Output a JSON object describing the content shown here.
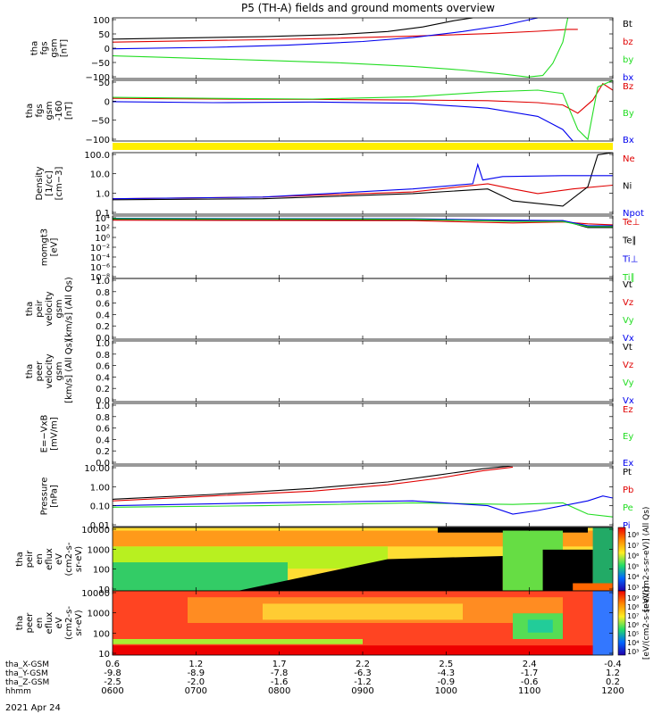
{
  "title": "P5 (TH-A) fields and ground moments overview",
  "date": "2021 Apr 24",
  "colors": {
    "black": "#000000",
    "red": "#e00000",
    "green": "#22dd22",
    "blue": "#0000ee",
    "yellow": "#ffee00"
  },
  "chart_data": [
    {
      "type": "line",
      "ylabel_lines": [
        "tha",
        "fgs",
        "gsm",
        "[nT]"
      ],
      "yticks": [
        "100",
        "50",
        "0",
        "−50",
        "−100"
      ],
      "ylim": [
        -100,
        100
      ],
      "series": [
        {
          "name": "Bt",
          "color": "black",
          "points": [
            [
              0,
              30
            ],
            [
              0.15,
              34
            ],
            [
              0.3,
              38
            ],
            [
              0.45,
              45
            ],
            [
              0.55,
              55
            ],
            [
              0.62,
              70
            ],
            [
              0.68,
              90
            ],
            [
              0.72,
              100
            ]
          ]
        },
        {
          "name": "bz",
          "color": "red",
          "points": [
            [
              0,
              20
            ],
            [
              0.15,
              24
            ],
            [
              0.3,
              28
            ],
            [
              0.45,
              33
            ],
            [
              0.6,
              40
            ],
            [
              0.75,
              48
            ],
            [
              0.85,
              56
            ],
            [
              0.91,
              62
            ],
            [
              0.93,
              62
            ]
          ]
        },
        {
          "name": "by",
          "color": "green",
          "points": [
            [
              0,
              -25
            ],
            [
              0.1,
              -30
            ],
            [
              0.2,
              -35
            ],
            [
              0.3,
              -40
            ],
            [
              0.45,
              -48
            ],
            [
              0.6,
              -60
            ],
            [
              0.7,
              -72
            ],
            [
              0.78,
              -85
            ],
            [
              0.83,
              -95
            ],
            [
              0.86,
              -90
            ],
            [
              0.88,
              -50
            ],
            [
              0.9,
              20
            ],
            [
              0.91,
              100
            ]
          ]
        },
        {
          "name": "bx",
          "color": "blue",
          "points": [
            [
              0,
              -2
            ],
            [
              0.2,
              3
            ],
            [
              0.35,
              10
            ],
            [
              0.5,
              22
            ],
            [
              0.6,
              35
            ],
            [
              0.7,
              55
            ],
            [
              0.78,
              75
            ],
            [
              0.85,
              100
            ]
          ]
        }
      ]
    },
    {
      "type": "line",
      "ylabel_lines": [
        "tha",
        "fgs",
        "gsm",
        "-160",
        "[nT]"
      ],
      "yticks": [
        "50",
        "0",
        "−50",
        "−100"
      ],
      "ylim": [
        -125,
        60
      ],
      "series": [
        {
          "name": "Bz",
          "color": "red",
          "points": [
            [
              0,
              5
            ],
            [
              0.2,
              3
            ],
            [
              0.4,
              2
            ],
            [
              0.6,
              0
            ],
            [
              0.75,
              -2
            ],
            [
              0.85,
              -8
            ],
            [
              0.9,
              -15
            ],
            [
              0.93,
              -40
            ],
            [
              0.96,
              0
            ],
            [
              0.98,
              50
            ],
            [
              1,
              30
            ]
          ]
        },
        {
          "name": "By",
          "color": "green",
          "points": [
            [
              0,
              8
            ],
            [
              0.2,
              5
            ],
            [
              0.4,
              3
            ],
            [
              0.6,
              10
            ],
            [
              0.75,
              25
            ],
            [
              0.85,
              30
            ],
            [
              0.9,
              20
            ],
            [
              0.93,
              -90
            ],
            [
              0.95,
              -120
            ],
            [
              0.97,
              40
            ],
            [
              1,
              60
            ]
          ]
        },
        {
          "name": "Bx",
          "color": "blue",
          "points": [
            [
              0,
              -5
            ],
            [
              0.2,
              -8
            ],
            [
              0.4,
              -6
            ],
            [
              0.6,
              -10
            ],
            [
              0.75,
              -25
            ],
            [
              0.85,
              -50
            ],
            [
              0.9,
              -90
            ],
            [
              0.92,
              -125
            ]
          ]
        }
      ]
    },
    {
      "type": "line",
      "ylabel_lines": [
        "Density",
        "[1/cc]",
        "[cm−3]"
      ],
      "yticks": [
        "100.0",
        "10.0",
        "1.0",
        "0.1"
      ],
      "ylim": [
        0.05,
        200
      ],
      "yscale": "log",
      "series": [
        {
          "name": "Ne",
          "color": "red",
          "points": [
            [
              0,
              0.4
            ],
            [
              0.3,
              0.5
            ],
            [
              0.6,
              1.0
            ],
            [
              0.75,
              3.0
            ],
            [
              0.8,
              1.5
            ],
            [
              0.85,
              0.8
            ],
            [
              0.92,
              1.5
            ],
            [
              1,
              2.5
            ]
          ]
        },
        {
          "name": "Ni",
          "color": "black",
          "points": [
            [
              0,
              0.35
            ],
            [
              0.3,
              0.4
            ],
            [
              0.6,
              0.8
            ],
            [
              0.75,
              1.5
            ],
            [
              0.8,
              0.3
            ],
            [
              0.9,
              0.15
            ],
            [
              0.95,
              2.0
            ],
            [
              0.97,
              150
            ],
            [
              1,
              200
            ]
          ]
        },
        {
          "name": "Npot",
          "color": "blue",
          "points": [
            [
              0,
              0.4
            ],
            [
              0.3,
              0.5
            ],
            [
              0.6,
              1.5
            ],
            [
              0.72,
              3.0
            ],
            [
              0.73,
              40
            ],
            [
              0.74,
              5.0
            ],
            [
              0.78,
              8.0
            ],
            [
              0.9,
              9.0
            ],
            [
              1,
              9.0
            ]
          ]
        }
      ]
    },
    {
      "type": "line",
      "ylabel_lines": [
        "momgt3",
        "[eV]"
      ],
      "yticks": [
        "10⁴",
        "10²",
        "10⁰",
        "10⁻²",
        "10⁻⁴",
        "10⁻⁶",
        "10⁻⁸"
      ],
      "ylim": [
        -9,
        4.5
      ],
      "yscale": "log10-exponent",
      "series": [
        {
          "name": "Te⊥",
          "color": "red",
          "points": [
            [
              0,
              3.6
            ],
            [
              0.6,
              3.5
            ],
            [
              0.8,
              3.0
            ],
            [
              0.9,
              3.2
            ],
            [
              0.95,
              2.8
            ],
            [
              1,
              2.6
            ]
          ]
        },
        {
          "name": "Te∥",
          "color": "black",
          "points": [
            [
              0,
              3.8
            ],
            [
              0.6,
              3.7
            ],
            [
              0.8,
              3.4
            ],
            [
              0.9,
              3.5
            ],
            [
              0.95,
              2.0
            ],
            [
              1,
              2.0
            ]
          ]
        },
        {
          "name": "Ti⊥",
          "color": "blue",
          "points": [
            [
              0,
              4.0
            ],
            [
              0.6,
              3.9
            ],
            [
              0.8,
              3.6
            ],
            [
              0.9,
              3.5
            ],
            [
              0.95,
              2.4
            ],
            [
              1,
              2.4
            ]
          ]
        },
        {
          "name": "Ti∥",
          "color": "green",
          "points": [
            [
              0,
              3.9
            ],
            [
              0.6,
              3.8
            ],
            [
              0.8,
              3.3
            ],
            [
              0.9,
              3.3
            ],
            [
              0.95,
              2.2
            ],
            [
              1,
              2.2
            ]
          ]
        }
      ]
    },
    {
      "type": "line",
      "ylabel_lines": [
        "tha",
        "peir",
        "velocity",
        "gsm",
        "[km/s] (All Qs)"
      ],
      "yticks": [
        "1.0",
        "0.8",
        "0.6",
        "0.4",
        "0.2",
        "0.0"
      ],
      "ylim": [
        0,
        1
      ],
      "series": [
        {
          "name": "Vt",
          "color": "black",
          "points": []
        },
        {
          "name": "Vz",
          "color": "red",
          "points": []
        },
        {
          "name": "Vy",
          "color": "green",
          "points": []
        },
        {
          "name": "Vx",
          "color": "blue",
          "points": []
        }
      ]
    },
    {
      "type": "line",
      "ylabel_lines": [
        "tha",
        "peer",
        "velocity",
        "gsm",
        "[km/s] (All Qs)"
      ],
      "yticks": [
        "1.0",
        "0.8",
        "0.6",
        "0.4",
        "0.2",
        "0.0"
      ],
      "ylim": [
        0,
        1
      ],
      "series": [
        {
          "name": "Vt",
          "color": "black",
          "points": []
        },
        {
          "name": "Vz",
          "color": "red",
          "points": []
        },
        {
          "name": "Vy",
          "color": "green",
          "points": []
        },
        {
          "name": "Vx",
          "color": "blue",
          "points": []
        }
      ]
    },
    {
      "type": "line",
      "ylabel_lines": [
        "E=−VxB",
        "[mV/m]"
      ],
      "yticks": [
        "1.0",
        "0.8",
        "0.6",
        "0.4",
        "0.2",
        "0.0"
      ],
      "ylim": [
        0,
        1
      ],
      "series": [
        {
          "name": "Ez",
          "color": "red",
          "points": []
        },
        {
          "name": "Ey",
          "color": "green",
          "points": []
        },
        {
          "name": "Ex",
          "color": "blue",
          "points": []
        }
      ]
    },
    {
      "type": "line",
      "ylabel_lines": [
        "Pressure",
        "[nPa]"
      ],
      "yticks": [
        "10.00",
        "1.00",
        "0.10",
        "0.01"
      ],
      "ylim": [
        0.005,
        30
      ],
      "yscale": "log",
      "series": [
        {
          "name": "Pt",
          "color": "black",
          "points": [
            [
              0,
              0.25
            ],
            [
              0.2,
              0.5
            ],
            [
              0.4,
              1.2
            ],
            [
              0.55,
              3.0
            ],
            [
              0.65,
              8.0
            ],
            [
              0.74,
              20
            ],
            [
              0.8,
              30
            ]
          ]
        },
        {
          "name": "Pb",
          "color": "red",
          "points": [
            [
              0,
              0.2
            ],
            [
              0.2,
              0.4
            ],
            [
              0.4,
              0.8
            ],
            [
              0.55,
              2.0
            ],
            [
              0.65,
              5.0
            ],
            [
              0.74,
              15
            ],
            [
              0.8,
              25
            ]
          ]
        },
        {
          "name": "Pe",
          "color": "green",
          "points": [
            [
              0,
              0.08
            ],
            [
              0.3,
              0.1
            ],
            [
              0.6,
              0.15
            ],
            [
              0.8,
              0.12
            ],
            [
              0.9,
              0.15
            ],
            [
              0.95,
              0.03
            ],
            [
              1,
              0.02
            ]
          ]
        },
        {
          "name": "Pi",
          "color": "blue",
          "points": [
            [
              0,
              0.1
            ],
            [
              0.3,
              0.15
            ],
            [
              0.6,
              0.2
            ],
            [
              0.75,
              0.1
            ],
            [
              0.8,
              0.03
            ],
            [
              0.85,
              0.05
            ],
            [
              0.9,
              0.1
            ],
            [
              0.95,
              0.2
            ],
            [
              0.98,
              0.4
            ],
            [
              1,
              0.3
            ]
          ]
        }
      ]
    },
    {
      "type": "heatmap",
      "ylabel_lines": [
        "tha",
        "peir",
        "en",
        "eflux",
        "eV",
        "(cm2-s-",
        "sr-eV)"
      ],
      "yticks": [
        "10000",
        "1000",
        "100",
        "10"
      ],
      "ylim": [
        5,
        30000
      ],
      "yscale": "log",
      "colorbar_label": "[eV/(cm2-s-sr-eV)] (All Qs)",
      "colorbar_ticks": [
        "10⁸",
        "10⁷",
        "10⁶",
        "10⁵",
        "10⁴",
        "10³"
      ]
    },
    {
      "type": "heatmap",
      "ylabel_lines": [
        "tha",
        "peer",
        "en",
        "eflux",
        "eV",
        "(cm2-s-",
        "sr-eV)"
      ],
      "yticks": [
        "10000",
        "1000",
        "100",
        "10"
      ],
      "ylim": [
        5,
        30000
      ],
      "yscale": "log",
      "colorbar_label": "[eV/(cm2-s-sr-eV)]",
      "colorbar_ticks": [
        "10⁹",
        "10⁸",
        "10⁷",
        "10⁶",
        "10⁵",
        "10⁴",
        "10³"
      ]
    }
  ],
  "x_axis": {
    "row_labels": [
      "tha_X-GSM",
      "tha_Y-GSM",
      "tha_Z-GSM",
      "hhmm"
    ],
    "columns": [
      [
        "0.6",
        "-9.8",
        "-2.5",
        "0600"
      ],
      [
        "1.2",
        "-8.9",
        "-2.0",
        "0700"
      ],
      [
        "1.7",
        "-7.8",
        "-1.6",
        "0800"
      ],
      [
        "2.2",
        "-6.3",
        "-1.2",
        "0900"
      ],
      [
        "2.5",
        "-4.3",
        "-0.9",
        "1000"
      ],
      [
        "2.4",
        "-1.7",
        "-0.6",
        "1100"
      ],
      [
        "-0.4",
        "1.2",
        "0.2",
        "1200"
      ]
    ]
  }
}
